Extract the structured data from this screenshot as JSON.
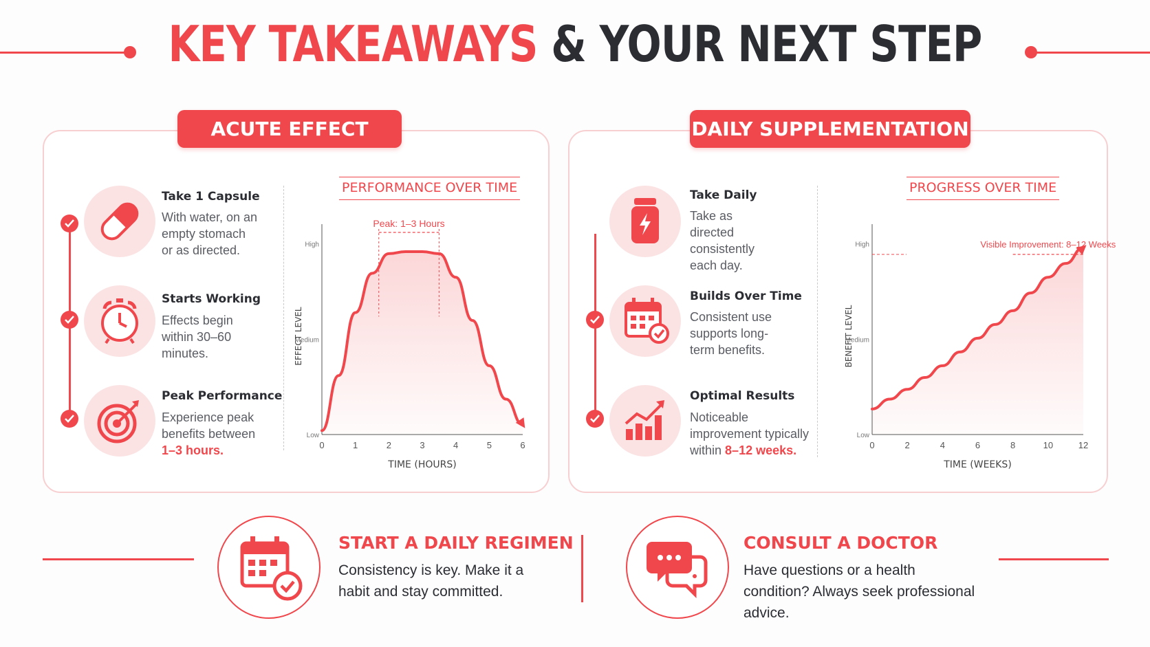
{
  "header": {
    "title_part1": "KEY TAKEAWAYS",
    "title_part2": "& YOUR NEXT STEP"
  },
  "acute": {
    "badge": "ACUTE EFFECT",
    "steps": [
      {
        "title": "Take 1 Capsule",
        "desc": "With water, on an empty stomach or as directed.",
        "icon": "capsule-icon"
      },
      {
        "title": "Starts Working",
        "desc": "Effects begin within 30–60 minutes.",
        "icon": "alarm-clock-icon"
      },
      {
        "title": "Peak Performance",
        "desc": "Experience peak benefits between",
        "highlight": "1–3 hours.",
        "icon": "target-icon"
      }
    ]
  },
  "daily": {
    "badge": "DAILY SUPPLEMENTATION",
    "steps": [
      {
        "title": "Take Daily",
        "desc": "Take as directed consistently each day.",
        "icon": "supplement-bottle-icon"
      },
      {
        "title": "Builds Over Time",
        "desc": "Consistent use supports long-term benefits.",
        "icon": "calendar-check-icon"
      },
      {
        "title": "Optimal Results",
        "desc": "Noticeable improvement typically within",
        "highlight": "8–12 weeks.",
        "icon": "growth-chart-icon"
      }
    ]
  },
  "chart_data": [
    {
      "type": "line",
      "title": "PERFORMANCE OVER TIME",
      "xlabel": "TIME (HOURS)",
      "ylabel": "EFFECT LEVEL",
      "xlim": [
        0,
        6
      ],
      "x_ticks": [
        "0",
        "1",
        "2",
        "3",
        "4",
        "5",
        "6"
      ],
      "y_ticks": [
        "Low",
        "Medium",
        "High"
      ],
      "annotation": "Peak: 1–3 Hours",
      "series": [
        {
          "x": [
            0,
            0.5,
            1,
            1.5,
            2,
            2.5,
            3,
            3.5,
            4,
            4.5,
            5,
            5.5,
            6
          ],
          "y": [
            0.02,
            0.3,
            0.62,
            0.82,
            0.92,
            0.93,
            0.93,
            0.92,
            0.8,
            0.58,
            0.35,
            0.18,
            0.05
          ]
        }
      ],
      "color": "#f0474c"
    },
    {
      "type": "line",
      "title": "PROGRESS OVER TIME",
      "xlabel": "TIME (WEEKS)",
      "ylabel": "BENEFIT LEVEL",
      "xlim": [
        0,
        12
      ],
      "x_ticks": [
        "0",
        "2",
        "4",
        "6",
        "8",
        "10",
        "12"
      ],
      "y_ticks": [
        "Low",
        "Medium",
        "High"
      ],
      "annotation": "Visible Improvement: 8–12 Weeks",
      "series": [
        {
          "x": [
            0,
            1,
            2,
            3,
            4,
            5,
            6,
            7,
            8,
            9,
            10,
            11,
            12
          ],
          "y": [
            0.13,
            0.18,
            0.23,
            0.29,
            0.35,
            0.42,
            0.49,
            0.56,
            0.63,
            0.72,
            0.8,
            0.87,
            0.95
          ]
        }
      ],
      "color": "#f0474c"
    }
  ],
  "cta": [
    {
      "title": "START A DAILY REGIMEN",
      "desc": "Consistency is key. Make it a habit and stay committed.",
      "icon": "calendar-check-icon"
    },
    {
      "title": "CONSULT A DOCTOR",
      "desc": "Have questions or a health condition? Always seek professional advice.",
      "icon": "chat-bubbles-icon"
    }
  ]
}
